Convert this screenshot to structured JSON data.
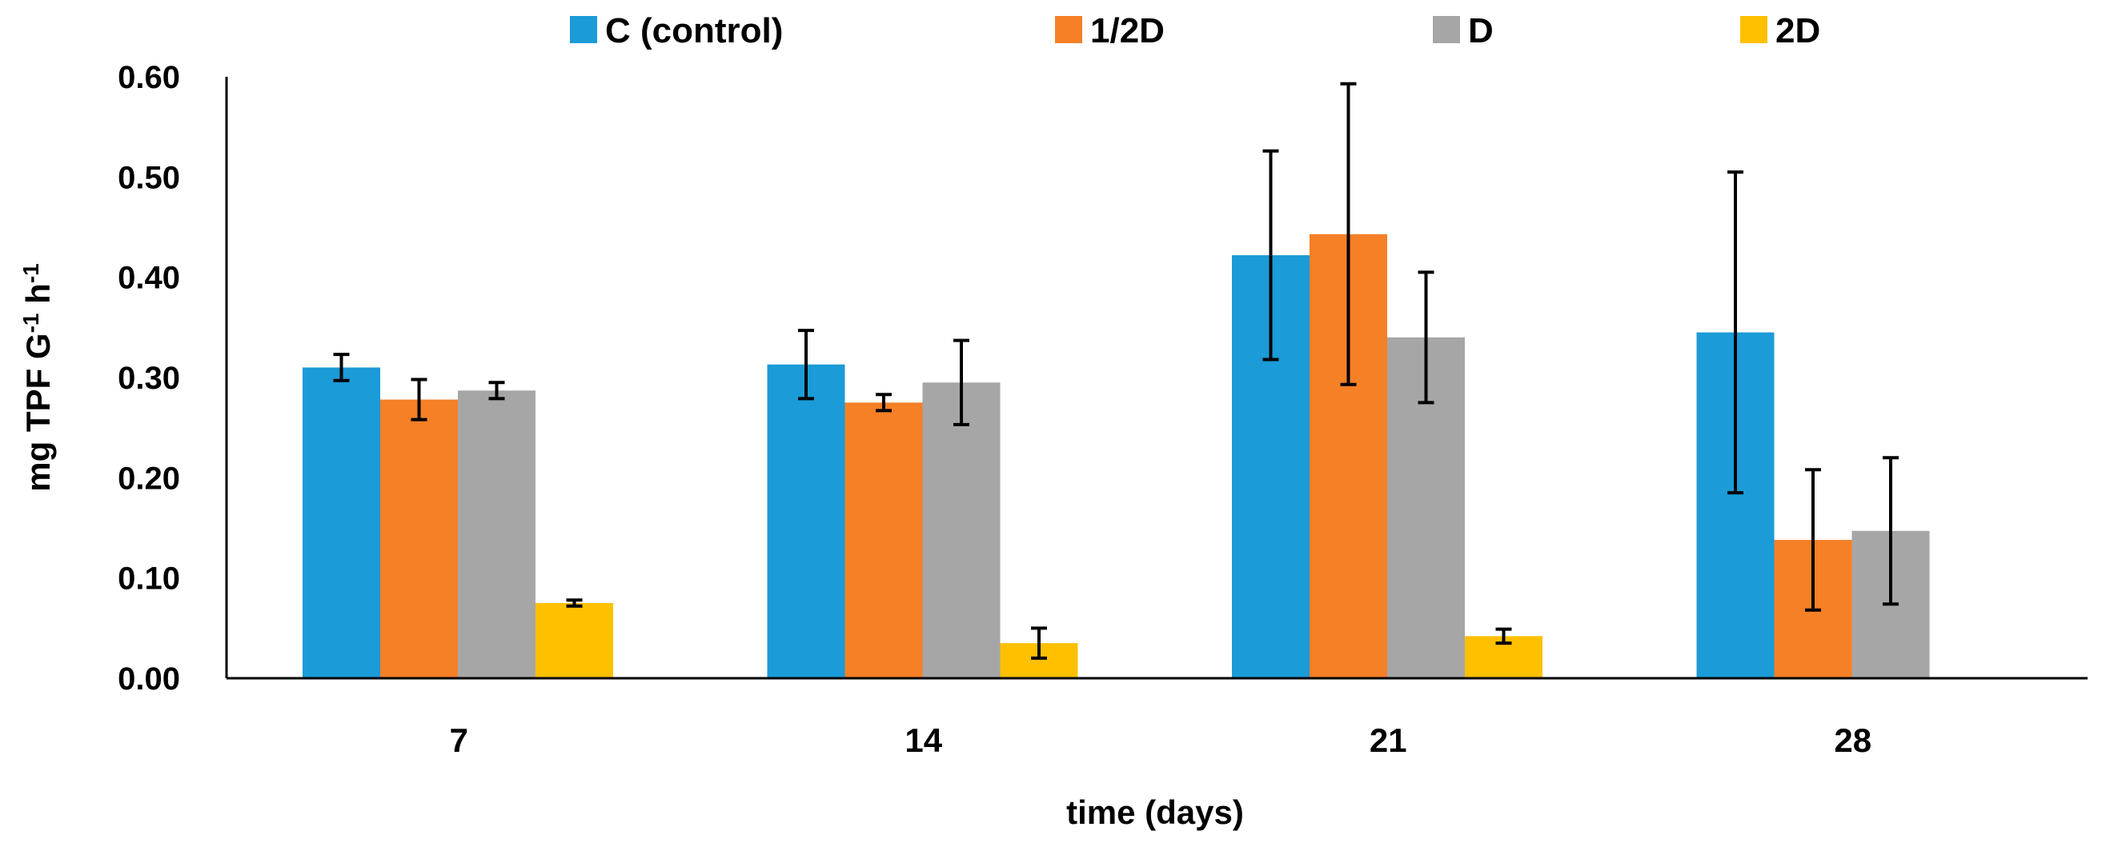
{
  "chart_data": {
    "type": "bar",
    "title": "",
    "xlabel": "time (days)",
    "ylabel_main": "mg TPF G",
    "ylabel_sup1": "-1",
    "ylabel_mid": " h",
    "ylabel_sup2": "-1",
    "categories": [
      "7",
      "14",
      "21",
      "28"
    ],
    "ylim": [
      0,
      0.6
    ],
    "yticks": [
      0,
      0.1,
      0.2,
      0.3,
      0.4,
      0.5,
      0.6
    ],
    "ytick_labels": [
      "0.00",
      "0.10",
      "0.20",
      "0.30",
      "0.40",
      "0.50",
      "0.60"
    ],
    "grid": false,
    "legend_position": "top",
    "series": [
      {
        "name": "C (control)",
        "color": "#1B9BD7",
        "values": [
          0.31,
          0.313,
          0.422,
          0.345
        ],
        "errors": [
          0.013,
          0.034,
          0.104,
          0.16
        ]
      },
      {
        "name": "1/2D",
        "color": "#F58026",
        "values": [
          0.278,
          0.275,
          0.443,
          0.138
        ],
        "errors": [
          0.02,
          0.008,
          0.15,
          0.07
        ]
      },
      {
        "name": "D",
        "color": "#A6A6A6",
        "values": [
          0.287,
          0.295,
          0.34,
          0.147
        ],
        "errors": [
          0.008,
          0.042,
          0.065,
          0.073
        ]
      },
      {
        "name": "2D",
        "color": "#FFC000",
        "values": [
          0.075,
          0.035,
          0.042,
          null
        ],
        "errors": [
          0.003,
          0.015,
          0.007,
          null
        ]
      }
    ]
  }
}
